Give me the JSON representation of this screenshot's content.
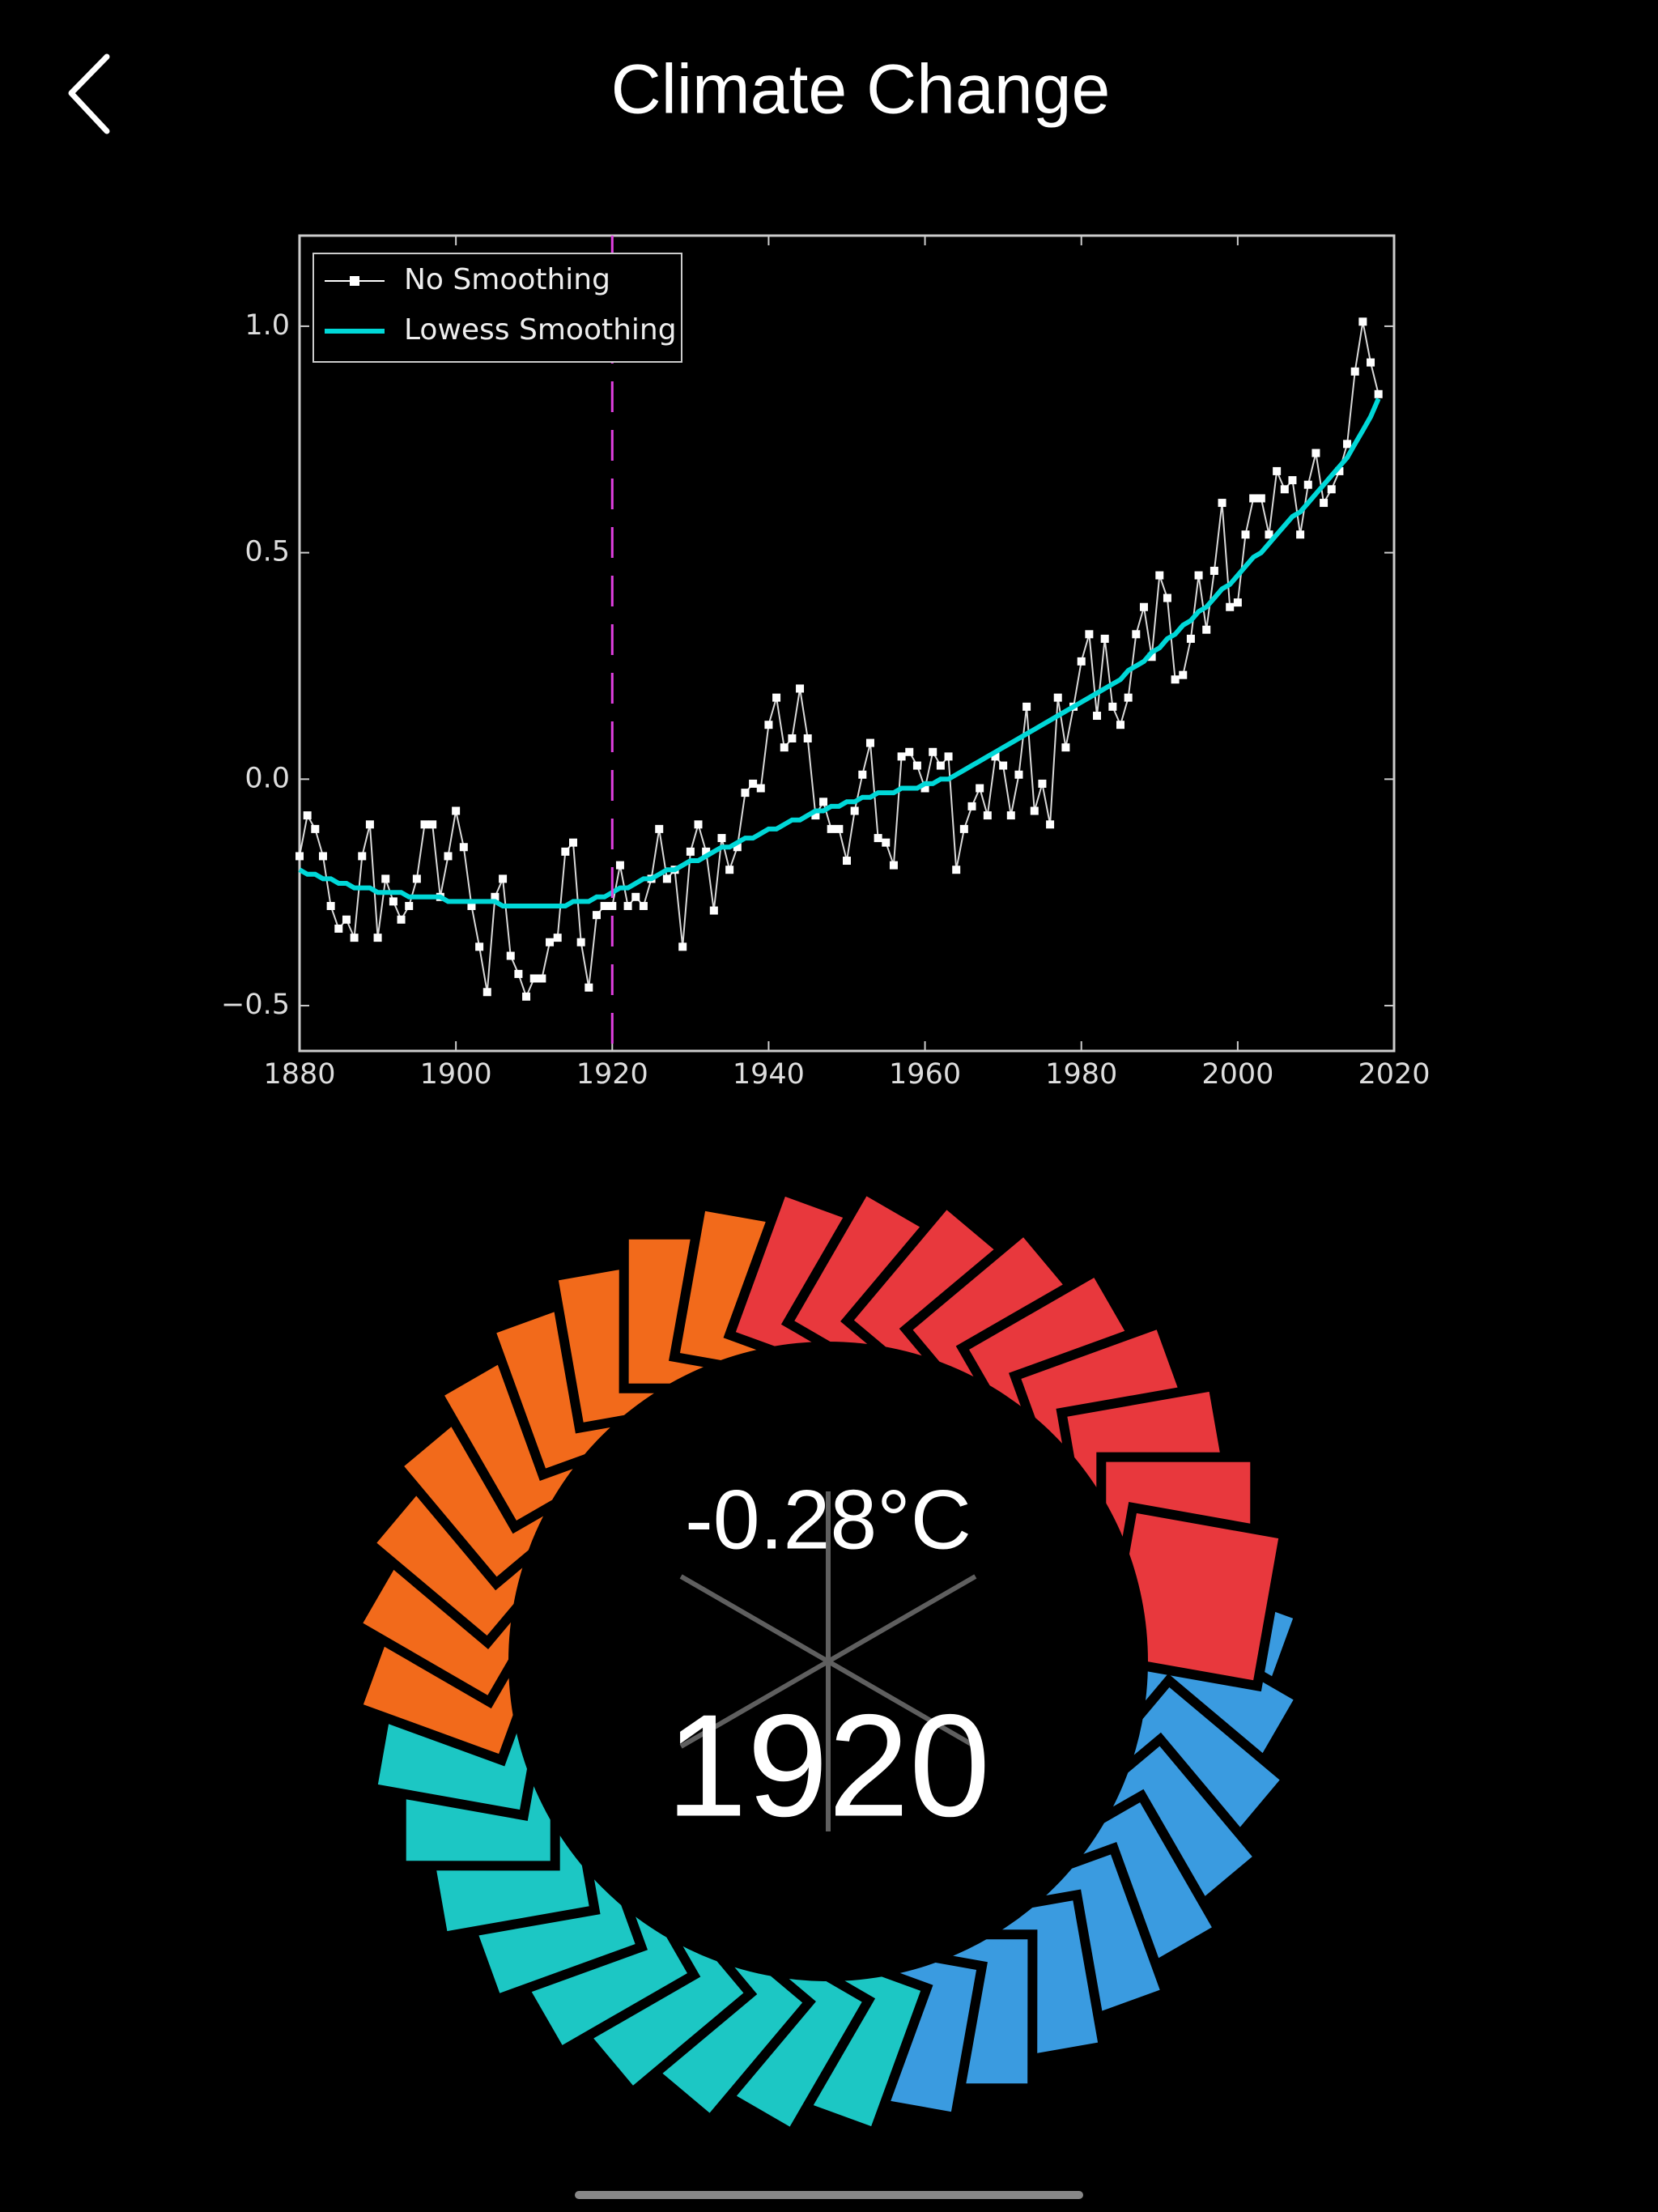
{
  "header": {
    "title": "Climate Change"
  },
  "chart_data": {
    "type": "line",
    "x": [
      1880,
      1881,
      1882,
      1883,
      1884,
      1885,
      1886,
      1887,
      1888,
      1889,
      1890,
      1891,
      1892,
      1893,
      1894,
      1895,
      1896,
      1897,
      1898,
      1899,
      1900,
      1901,
      1902,
      1903,
      1904,
      1905,
      1906,
      1907,
      1908,
      1909,
      1910,
      1911,
      1912,
      1913,
      1914,
      1915,
      1916,
      1917,
      1918,
      1919,
      1920,
      1921,
      1922,
      1923,
      1924,
      1925,
      1926,
      1927,
      1928,
      1929,
      1930,
      1931,
      1932,
      1933,
      1934,
      1935,
      1936,
      1937,
      1938,
      1939,
      1940,
      1941,
      1942,
      1943,
      1944,
      1945,
      1946,
      1947,
      1948,
      1949,
      1950,
      1951,
      1952,
      1953,
      1954,
      1955,
      1956,
      1957,
      1958,
      1959,
      1960,
      1961,
      1962,
      1963,
      1964,
      1965,
      1966,
      1967,
      1968,
      1969,
      1970,
      1971,
      1972,
      1973,
      1974,
      1975,
      1976,
      1977,
      1978,
      1979,
      1980,
      1981,
      1982,
      1983,
      1984,
      1985,
      1986,
      1987,
      1988,
      1989,
      1990,
      1991,
      1992,
      1993,
      1994,
      1995,
      1996,
      1997,
      1998,
      1999,
      2000,
      2001,
      2002,
      2003,
      2004,
      2005,
      2006,
      2007,
      2008,
      2009,
      2010,
      2011,
      2012,
      2013,
      2014,
      2015,
      2016,
      2017,
      2018
    ],
    "series": [
      {
        "name": "No Smoothing",
        "color": "#ffffff",
        "marker": "square",
        "values": [
          -0.17,
          -0.08,
          -0.11,
          -0.17,
          -0.28,
          -0.33,
          -0.31,
          -0.35,
          -0.17,
          -0.1,
          -0.35,
          -0.22,
          -0.27,
          -0.31,
          -0.28,
          -0.22,
          -0.1,
          -0.1,
          -0.26,
          -0.17,
          -0.07,
          -0.15,
          -0.28,
          -0.37,
          -0.47,
          -0.26,
          -0.22,
          -0.39,
          -0.43,
          -0.48,
          -0.44,
          -0.44,
          -0.36,
          -0.35,
          -0.16,
          -0.14,
          -0.36,
          -0.46,
          -0.3,
          -0.28,
          -0.28,
          -0.19,
          -0.28,
          -0.26,
          -0.28,
          -0.22,
          -0.11,
          -0.22,
          -0.2,
          -0.37,
          -0.16,
          -0.1,
          -0.16,
          -0.29,
          -0.13,
          -0.2,
          -0.15,
          -0.03,
          -0.01,
          -0.02,
          0.12,
          0.18,
          0.07,
          0.09,
          0.2,
          0.09,
          -0.08,
          -0.05,
          -0.11,
          -0.11,
          -0.18,
          -0.07,
          0.01,
          0.08,
          -0.13,
          -0.14,
          -0.19,
          0.05,
          0.06,
          0.03,
          -0.02,
          0.06,
          0.03,
          0.05,
          -0.2,
          -0.11,
          -0.06,
          -0.02,
          -0.08,
          0.05,
          0.03,
          -0.08,
          0.01,
          0.16,
          -0.07,
          -0.01,
          -0.1,
          0.18,
          0.07,
          0.16,
          0.26,
          0.32,
          0.14,
          0.31,
          0.16,
          0.12,
          0.18,
          0.32,
          0.38,
          0.27,
          0.45,
          0.4,
          0.22,
          0.23,
          0.31,
          0.45,
          0.33,
          0.46,
          0.61,
          0.38,
          0.39,
          0.54,
          0.62,
          0.62,
          0.54,
          0.68,
          0.64,
          0.66,
          0.54,
          0.65,
          0.72,
          0.61,
          0.64,
          0.68,
          0.74,
          0.9,
          1.01,
          0.92,
          0.85
        ]
      },
      {
        "name": "Lowess Smoothing",
        "color": "#00d8d8",
        "values": [
          -0.2,
          -0.21,
          -0.21,
          -0.22,
          -0.22,
          -0.23,
          -0.23,
          -0.24,
          -0.24,
          -0.24,
          -0.25,
          -0.25,
          -0.25,
          -0.25,
          -0.26,
          -0.26,
          -0.26,
          -0.26,
          -0.26,
          -0.27,
          -0.27,
          -0.27,
          -0.27,
          -0.27,
          -0.27,
          -0.27,
          -0.28,
          -0.28,
          -0.28,
          -0.28,
          -0.28,
          -0.28,
          -0.28,
          -0.28,
          -0.28,
          -0.27,
          -0.27,
          -0.27,
          -0.26,
          -0.26,
          -0.25,
          -0.24,
          -0.24,
          -0.23,
          -0.22,
          -0.22,
          -0.21,
          -0.2,
          -0.2,
          -0.19,
          -0.18,
          -0.18,
          -0.17,
          -0.16,
          -0.15,
          -0.15,
          -0.14,
          -0.13,
          -0.13,
          -0.12,
          -0.11,
          -0.11,
          -0.1,
          -0.09,
          -0.09,
          -0.08,
          -0.07,
          -0.07,
          -0.06,
          -0.06,
          -0.05,
          -0.05,
          -0.04,
          -0.04,
          -0.03,
          -0.03,
          -0.03,
          -0.02,
          -0.02,
          -0.02,
          -0.01,
          -0.01,
          0.0,
          0.0,
          0.01,
          0.02,
          0.03,
          0.04,
          0.05,
          0.06,
          0.07,
          0.08,
          0.09,
          0.1,
          0.11,
          0.12,
          0.13,
          0.14,
          0.15,
          0.16,
          0.17,
          0.18,
          0.19,
          0.2,
          0.21,
          0.22,
          0.24,
          0.25,
          0.26,
          0.28,
          0.29,
          0.31,
          0.32,
          0.34,
          0.35,
          0.37,
          0.38,
          0.4,
          0.42,
          0.43,
          0.45,
          0.47,
          0.49,
          0.5,
          0.52,
          0.54,
          0.56,
          0.58,
          0.59,
          0.61,
          0.63,
          0.65,
          0.67,
          0.69,
          0.71,
          0.74,
          0.77,
          0.8,
          0.84
        ]
      }
    ],
    "xlim": [
      1880,
      2020
    ],
    "xticks": [
      1880,
      1900,
      1920,
      1940,
      1960,
      1980,
      2000,
      2020
    ],
    "ylim": [
      -0.6,
      1.2
    ],
    "yticks": [
      {
        "value": -0.5,
        "label": "−0.5"
      },
      {
        "value": 0,
        "label": "0.0"
      },
      0.5,
      {
        "value": 1,
        "label": "1.0"
      }
    ],
    "highlight_x": 1920,
    "highlight_color": "#e040e0",
    "legend": "upper left",
    "grid": false
  },
  "display": {
    "temperature": "-0.28°C",
    "year": "1920"
  }
}
